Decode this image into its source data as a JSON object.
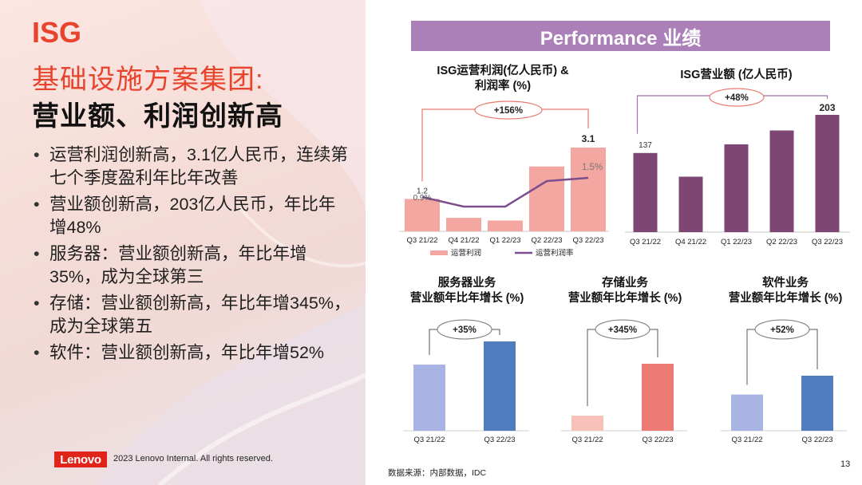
{
  "left": {
    "title_isg": "ISG",
    "title_group": "基础设施方案集团:",
    "title_main": "营业额、利润创新高",
    "bullets": [
      "运营利润创新高，3.1亿人民币，连续第七个季度盈利年比年改善",
      "营业额创新高，203亿人民币，年比年增48%",
      "服务器：营业额创新高，年比年增35%，成为全球第三",
      "存储：营业额创新高，年比年增345%，成为全球第五",
      "软件：营业额创新高，年比年增52%"
    ],
    "logo_text": "Lenovo",
    "copyright": "2023 Lenovo Internal. All rights reserved."
  },
  "banner": "Performance 业绩",
  "footer": {
    "source": "数据来源：内部数据，IDC",
    "page_number": "13"
  },
  "colors": {
    "accent_red": "#e8432c",
    "banner_purple": "#ab80b8",
    "profit_bar": "#f4a7a1",
    "margin_line": "#7b4f8f",
    "revenue_bar": "#7d4675",
    "bracket_purple": "#9b76aa",
    "growth_prev": "#aab4e4",
    "growth_server": "#4f7dbf",
    "growth_storage_prev": "#f7c1b8",
    "growth_storage": "#ee7a76",
    "oval": "#e87a70"
  },
  "chart_data": [
    {
      "type": "bar",
      "title_line1": "ISG运营利润(亿人民币) &",
      "title_line2": "利润率 (%)",
      "categories": [
        "Q3 21/22",
        "Q4 21/22",
        "Q1 22/23",
        "Q2 22/23",
        "Q3 22/23"
      ],
      "series": [
        {
          "name": "运营利润",
          "kind": "bar",
          "values": [
            1.2,
            0.5,
            0.4,
            2.4,
            3.1
          ]
        },
        {
          "name": "运营利润率",
          "kind": "line",
          "values": [
            0.9,
            0.6,
            0.6,
            1.4,
            1.5
          ]
        }
      ],
      "data_labels": {
        "first_bar": "1.2",
        "last_bar": "3.1",
        "first_line": "0.9%",
        "last_line": "1.5%"
      },
      "growth_label": "+156%"
    },
    {
      "type": "bar",
      "title": "ISG营业额 (亿人民币)",
      "categories": [
        "Q3 21/22",
        "Q4 21/22",
        "Q1 22/23",
        "Q2 22/23",
        "Q3 22/23"
      ],
      "values": [
        137,
        96,
        152,
        176,
        203
      ],
      "data_labels": {
        "first": "137",
        "last": "203"
      },
      "growth_label": "+48%"
    },
    {
      "type": "bar",
      "title_line1": "服务器业务",
      "title_line2": "营业额年比年增长 (%)",
      "categories": [
        "Q3 21/22",
        "Q3 22/23"
      ],
      "values": [
        100,
        135
      ],
      "growth_label": "+35%"
    },
    {
      "type": "bar",
      "title_line1": "存储业务",
      "title_line2": "营业额年比年增长 (%)",
      "categories": [
        "Q3 21/22",
        "Q3 22/23"
      ],
      "values": [
        100,
        445
      ],
      "growth_label": "+345%"
    },
    {
      "type": "bar",
      "title_line1": "软件业务",
      "title_line2": "营业额年比年增长 (%)",
      "categories": [
        "Q3 21/22",
        "Q3 22/23"
      ],
      "values": [
        100,
        152
      ],
      "growth_label": "+52%"
    }
  ]
}
